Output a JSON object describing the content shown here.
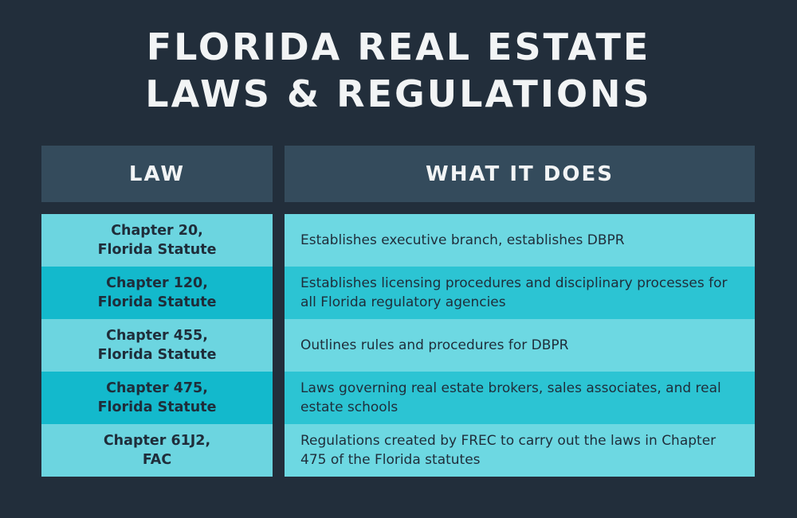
{
  "title": [
    "FLORIDA REAL ESTATE",
    "LAWS & REGULATIONS"
  ],
  "table": {
    "header": [
      "LAW",
      "WHAT IT DOES"
    ],
    "rows": [
      {
        "law": [
          "Chapter 20,",
          "Florida Statute"
        ],
        "description": "Establishes executive branch, establishes DBPR"
      },
      {
        "law": [
          "Chapter 120,",
          "Florida Statute"
        ],
        "description": "Establishes licensing procedures and disciplinary processes for all Florida regulatory agencies"
      },
      {
        "law": [
          "Chapter 455,",
          "Florida Statute"
        ],
        "description": "Outlines rules and procedures for DBPR"
      },
      {
        "law": [
          "Chapter 475,",
          "Florida Statute"
        ],
        "description": "Laws governing real estate brokers, sales associates, and real estate schools"
      },
      {
        "law": [
          "Chapter 61J2,",
          "FAC"
        ],
        "description": "Regulations created by FREC to carry out the laws in Chapter 475 of the Florida statutes"
      }
    ]
  }
}
